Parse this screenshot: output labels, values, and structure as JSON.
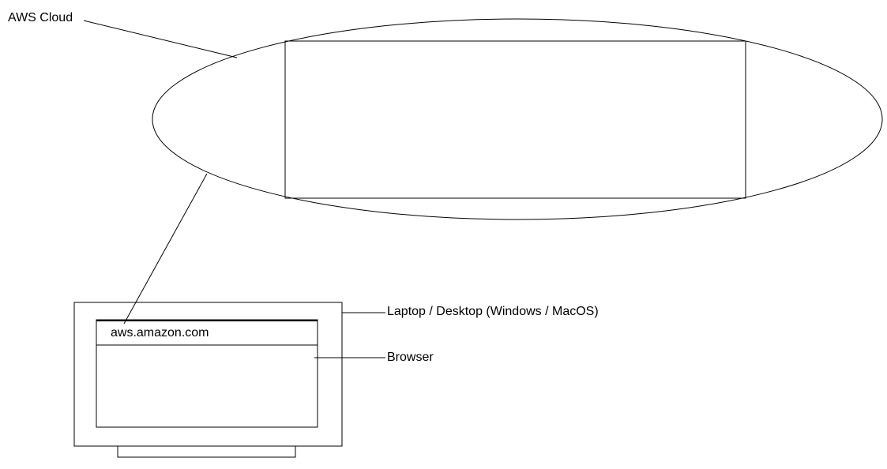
{
  "labels": {
    "cloud": "AWS Cloud",
    "laptop": "Laptop / Desktop (Windows / MacOS)",
    "browser": "Browser"
  },
  "browser": {
    "address_bar": "aws.amazon.com"
  },
  "colors": {
    "stroke": "#000000",
    "background": "#ffffff"
  }
}
